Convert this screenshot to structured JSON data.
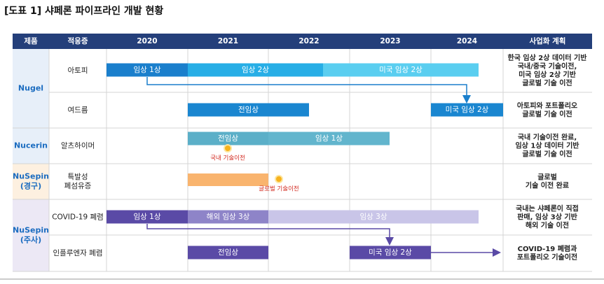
{
  "title": "[도표 1] 샤페론 파이프라인 개발 현황",
  "header": [
    "제품",
    "적응증",
    "2020",
    "2021",
    "2022",
    "2023",
    "2024",
    "사업화 계획"
  ],
  "products": [
    {
      "name": [
        "Nugel"
      ],
      "indications": [
        {
          "name": [
            "아토피"
          ],
          "bars": [
            "임상 1상",
            "임상 2상",
            "미국 임상 2상"
          ],
          "plan": [
            "한국 임상 2상 데이터 기반",
            "국내/중국 기술이전,",
            "미국 임상 2상 기반",
            "글로벌 기술 이전"
          ]
        },
        {
          "name": [
            "여드름"
          ],
          "bars": [
            "전임상",
            "미국 임상 2상"
          ],
          "plan": [
            "아토피와 포트폴리오",
            "글로벌 기술 이전"
          ]
        }
      ]
    },
    {
      "name": [
        "Nucerin"
      ],
      "indications": [
        {
          "name": [
            "알츠하이머"
          ],
          "bars": [
            "전임상",
            "임상 1상"
          ],
          "notes": [
            "국내 기술이전"
          ],
          "plan": [
            "국내 기술이전 완료,",
            "임상 1상 데이터 기반",
            "글로벌 기술 이전"
          ]
        }
      ]
    },
    {
      "name": [
        "NuSepin",
        "(경구)"
      ],
      "indications": [
        {
          "name": [
            "특발성",
            "폐섬유증"
          ],
          "notes": [
            "글로벌 기술이전"
          ],
          "plan": [
            "글로벌",
            "기술 이전 완료"
          ]
        }
      ]
    },
    {
      "name": [
        "NuSepin",
        "(주사)"
      ],
      "indications": [
        {
          "name": [
            "COVID-19 폐렴"
          ],
          "bars": [
            "임상 1상",
            "해외 임상 3상",
            "임상 3상"
          ],
          "plan": [
            "국내는 샤페론이 직접",
            "판매, 임상 3상 기반",
            "해외 기술 이전"
          ]
        },
        {
          "name": [
            "인플루엔자 폐렴"
          ],
          "bars": [
            "전임상",
            "미국 임상 2상"
          ],
          "plan": [
            "COVID-19 폐렴과",
            "포트폴리오 기술이전"
          ]
        }
      ]
    }
  ]
}
